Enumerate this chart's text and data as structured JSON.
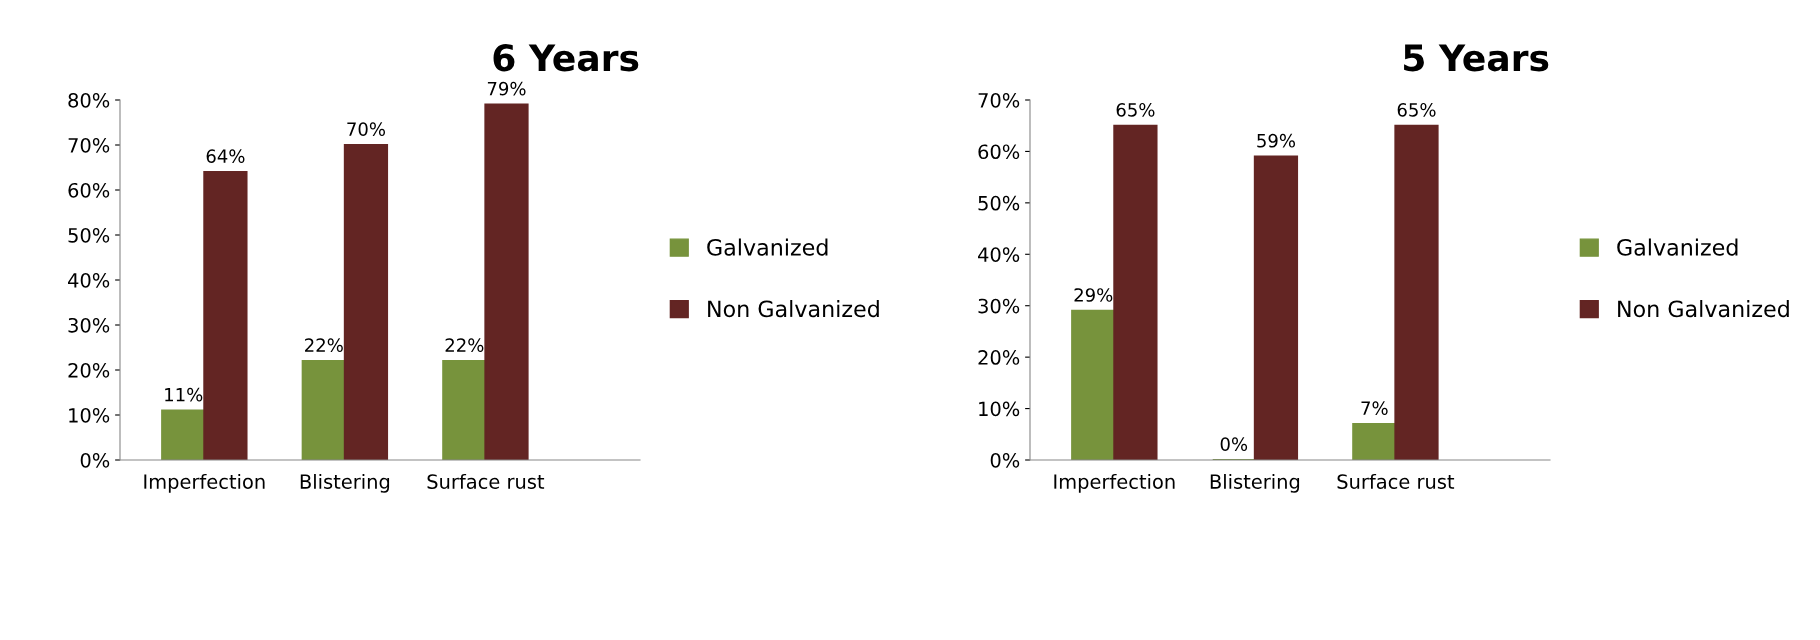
{
  "chart_data": [
    {
      "type": "bar",
      "title": "6 Years",
      "categories": [
        "Imperfection",
        "Blistering",
        "Surface rust"
      ],
      "series": [
        {
          "name": "Galvanized",
          "color": "#77933c",
          "values": [
            11,
            22,
            22
          ],
          "value_labels": [
            "11%",
            "22%",
            "22%"
          ]
        },
        {
          "name": "Non Galvanized",
          "color": "#632523",
          "values": [
            64,
            70,
            79
          ],
          "value_labels": [
            "64%",
            "70%",
            "79%"
          ]
        }
      ],
      "ylim": [
        0,
        80
      ],
      "yticks": [
        {
          "value": 0,
          "label": "0%"
        },
        {
          "value": 10,
          "label": "10%"
        },
        {
          "value": 20,
          "label": "20%"
        },
        {
          "value": 30,
          "label": "30%"
        },
        {
          "value": 40,
          "label": "40%"
        },
        {
          "value": 50,
          "label": "50%"
        },
        {
          "value": 60,
          "label": "60%"
        },
        {
          "value": 70,
          "label": "70%"
        },
        {
          "value": 80,
          "label": "80%"
        }
      ],
      "legend": "right"
    },
    {
      "type": "bar",
      "title": "5 Years",
      "categories": [
        "Imperfection",
        "Blistering",
        "Surface rust"
      ],
      "series": [
        {
          "name": "Galvanized",
          "color": "#77933c",
          "values": [
            29,
            0,
            7
          ],
          "value_labels": [
            "29%",
            "0%",
            "7%"
          ]
        },
        {
          "name": "Non Galvanized",
          "color": "#632523",
          "values": [
            65,
            59,
            65
          ],
          "value_labels": [
            "65%",
            "59%",
            "65%"
          ]
        }
      ],
      "ylim": [
        0,
        70
      ],
      "yticks": [
        {
          "value": 0,
          "label": "0%"
        },
        {
          "value": 10,
          "label": "10%"
        },
        {
          "value": 20,
          "label": "20%"
        },
        {
          "value": 30,
          "label": "30%"
        },
        {
          "value": 40,
          "label": "40%"
        },
        {
          "value": 50,
          "label": "50%"
        },
        {
          "value": 60,
          "label": "60%"
        },
        {
          "value": 70,
          "label": "70%"
        }
      ],
      "legend": "right"
    }
  ]
}
